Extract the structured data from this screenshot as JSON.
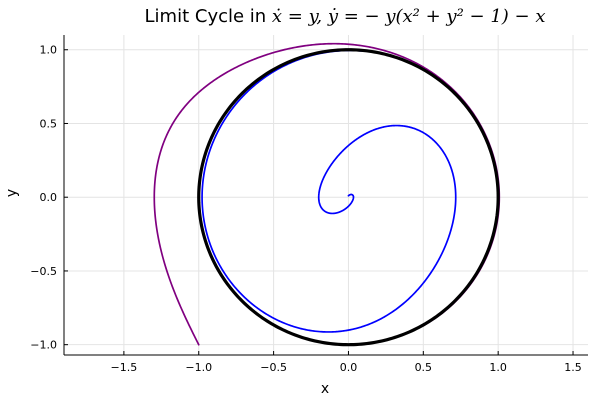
{
  "chart_data": {
    "type": "line",
    "title_text": "Limit Cycle in ",
    "title_math": "ẋ = y, ẏ = − y(x² + y² − 1) − x",
    "xlabel": "x",
    "ylabel": "y",
    "xlim": [
      -1.9,
      1.6
    ],
    "ylim": [
      -1.07,
      1.1
    ],
    "xticks": [
      -1.5,
      -1.0,
      -0.5,
      0.0,
      0.5,
      1.0,
      1.5
    ],
    "xtick_labels": [
      "−1.5",
      "−1.0",
      "−0.5",
      "0.0",
      "0.5",
      "1.0",
      "1.5"
    ],
    "yticks": [
      -1.0,
      -0.5,
      0.0,
      0.5,
      1.0
    ],
    "ytick_labels": [
      "−1.0",
      "−0.5",
      "0.0",
      "0.5",
      "1.0"
    ],
    "grid": true,
    "system": "dx/dt = y, dy/dt = -y(x^2+y^2-1) - x",
    "series": [
      {
        "start": [
          -1.0,
          -1.0
        ],
        "color": "#800080",
        "stroke_width": 1.7
      },
      {
        "start": [
          0.0,
          0.01
        ],
        "color": "#0000ff",
        "stroke_width": 1.7
      },
      {
        "curve": "unit-circle",
        "radius": 1.0,
        "color": "#000000",
        "stroke_width": 3.2
      }
    ]
  }
}
